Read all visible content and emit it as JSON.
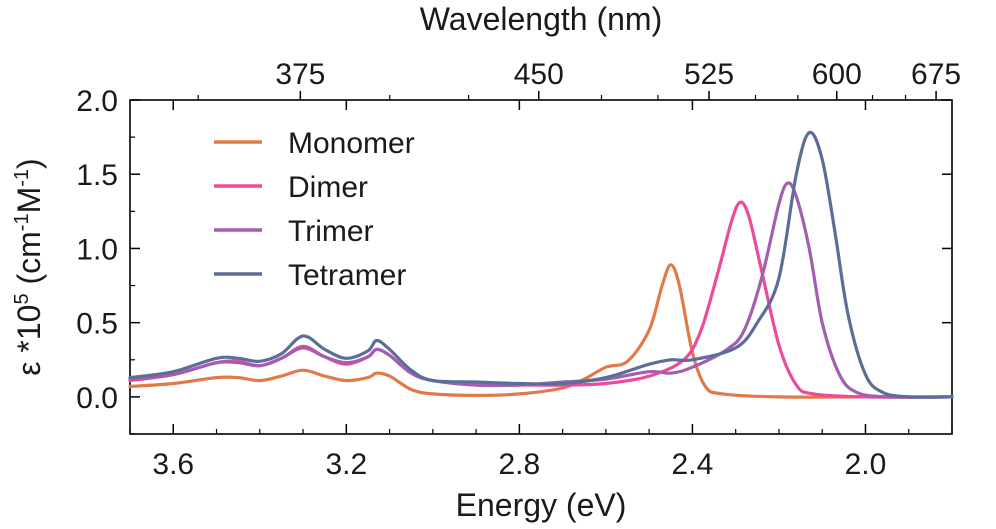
{
  "chart_data": {
    "type": "line",
    "xlabel": "Energy (eV)",
    "top_xlabel": "Wavelength (nm)",
    "ylabel": "ε *10^5 (cm^-1 M^-1)",
    "ylabel_parts": {
      "main": "ε *10",
      "exp1": "5",
      "mid1": " (cm",
      "exp2": "-1",
      "mid2": "M",
      "exp3": "-1",
      "end": ")"
    },
    "xlim": [
      3.7,
      1.8
    ],
    "ylim": [
      -0.25,
      2.0
    ],
    "x_ticks": [
      3.6,
      3.2,
      2.8,
      2.4,
      2.0
    ],
    "x_tick_labels": [
      "3.6",
      "3.2",
      "2.8",
      "2.4",
      "2.0"
    ],
    "y_ticks": [
      0.0,
      0.5,
      1.0,
      1.5,
      2.0
    ],
    "y_tick_labels": [
      "0.0",
      "0.5",
      "1.0",
      "1.5",
      "2.0"
    ],
    "top_ticks_nm": [
      375,
      450,
      525,
      600,
      675
    ],
    "top_tick_labels": [
      "375",
      "450",
      "525",
      "600",
      "675"
    ],
    "legend_position": "upper-left",
    "series": [
      {
        "name": "Monomer",
        "color": "#e07a4a",
        "points": [
          [
            3.7,
            0.07
          ],
          [
            3.6,
            0.09
          ],
          [
            3.5,
            0.13
          ],
          [
            3.45,
            0.13
          ],
          [
            3.4,
            0.11
          ],
          [
            3.35,
            0.14
          ],
          [
            3.3,
            0.18
          ],
          [
            3.25,
            0.14
          ],
          [
            3.2,
            0.11
          ],
          [
            3.15,
            0.13
          ],
          [
            3.13,
            0.16
          ],
          [
            3.1,
            0.14
          ],
          [
            3.05,
            0.05
          ],
          [
            3.0,
            0.02
          ],
          [
            2.9,
            0.01
          ],
          [
            2.8,
            0.02
          ],
          [
            2.7,
            0.06
          ],
          [
            2.65,
            0.12
          ],
          [
            2.6,
            0.2
          ],
          [
            2.55,
            0.24
          ],
          [
            2.5,
            0.45
          ],
          [
            2.47,
            0.75
          ],
          [
            2.45,
            0.89
          ],
          [
            2.43,
            0.75
          ],
          [
            2.4,
            0.3
          ],
          [
            2.37,
            0.07
          ],
          [
            2.33,
            0.02
          ],
          [
            2.2,
            0.0
          ],
          [
            2.0,
            0.0
          ],
          [
            1.8,
            0.0
          ]
        ]
      },
      {
        "name": "Dimer",
        "color": "#ee4a9c",
        "points": [
          [
            3.7,
            0.11
          ],
          [
            3.6,
            0.15
          ],
          [
            3.5,
            0.23
          ],
          [
            3.45,
            0.24
          ],
          [
            3.4,
            0.21
          ],
          [
            3.35,
            0.26
          ],
          [
            3.3,
            0.34
          ],
          [
            3.25,
            0.27
          ],
          [
            3.2,
            0.22
          ],
          [
            3.15,
            0.27
          ],
          [
            3.13,
            0.32
          ],
          [
            3.1,
            0.28
          ],
          [
            3.05,
            0.16
          ],
          [
            3.0,
            0.11
          ],
          [
            2.9,
            0.08
          ],
          [
            2.8,
            0.08
          ],
          [
            2.7,
            0.08
          ],
          [
            2.6,
            0.09
          ],
          [
            2.5,
            0.14
          ],
          [
            2.42,
            0.25
          ],
          [
            2.38,
            0.45
          ],
          [
            2.34,
            0.85
          ],
          [
            2.31,
            1.18
          ],
          [
            2.29,
            1.31
          ],
          [
            2.27,
            1.22
          ],
          [
            2.24,
            0.85
          ],
          [
            2.2,
            0.35
          ],
          [
            2.16,
            0.08
          ],
          [
            2.12,
            0.02
          ],
          [
            2.0,
            0.0
          ],
          [
            1.8,
            0.0
          ]
        ]
      },
      {
        "name": "Trimer",
        "color": "#a35eb0",
        "points": [
          [
            3.7,
            0.12
          ],
          [
            3.6,
            0.15
          ],
          [
            3.5,
            0.23
          ],
          [
            3.45,
            0.23
          ],
          [
            3.4,
            0.21
          ],
          [
            3.35,
            0.26
          ],
          [
            3.3,
            0.33
          ],
          [
            3.25,
            0.27
          ],
          [
            3.2,
            0.23
          ],
          [
            3.15,
            0.27
          ],
          [
            3.13,
            0.32
          ],
          [
            3.1,
            0.28
          ],
          [
            3.05,
            0.16
          ],
          [
            3.0,
            0.11
          ],
          [
            2.9,
            0.08
          ],
          [
            2.8,
            0.08
          ],
          [
            2.7,
            0.1
          ],
          [
            2.6,
            0.12
          ],
          [
            2.5,
            0.17
          ],
          [
            2.45,
            0.16
          ],
          [
            2.4,
            0.2
          ],
          [
            2.32,
            0.32
          ],
          [
            2.28,
            0.45
          ],
          [
            2.24,
            0.8
          ],
          [
            2.2,
            1.3
          ],
          [
            2.18,
            1.44
          ],
          [
            2.16,
            1.35
          ],
          [
            2.13,
            1.0
          ],
          [
            2.1,
            0.5
          ],
          [
            2.06,
            0.15
          ],
          [
            2.02,
            0.03
          ],
          [
            1.95,
            0.0
          ],
          [
            1.8,
            0.0
          ]
        ]
      },
      {
        "name": "Tetramer",
        "color": "#5b6e99",
        "points": [
          [
            3.7,
            0.13
          ],
          [
            3.6,
            0.17
          ],
          [
            3.5,
            0.26
          ],
          [
            3.45,
            0.26
          ],
          [
            3.4,
            0.24
          ],
          [
            3.35,
            0.29
          ],
          [
            3.3,
            0.41
          ],
          [
            3.25,
            0.32
          ],
          [
            3.2,
            0.26
          ],
          [
            3.15,
            0.31
          ],
          [
            3.13,
            0.38
          ],
          [
            3.1,
            0.32
          ],
          [
            3.05,
            0.18
          ],
          [
            3.0,
            0.11
          ],
          [
            2.9,
            0.1
          ],
          [
            2.8,
            0.09
          ],
          [
            2.7,
            0.09
          ],
          [
            2.6,
            0.13
          ],
          [
            2.5,
            0.22
          ],
          [
            2.45,
            0.25
          ],
          [
            2.4,
            0.25
          ],
          [
            2.3,
            0.33
          ],
          [
            2.25,
            0.5
          ],
          [
            2.2,
            0.8
          ],
          [
            2.16,
            1.5
          ],
          [
            2.13,
            1.78
          ],
          [
            2.1,
            1.6
          ],
          [
            2.07,
            1.1
          ],
          [
            2.04,
            0.55
          ],
          [
            2.0,
            0.15
          ],
          [
            1.96,
            0.03
          ],
          [
            1.9,
            0.0
          ],
          [
            1.8,
            0.0
          ]
        ]
      }
    ]
  }
}
